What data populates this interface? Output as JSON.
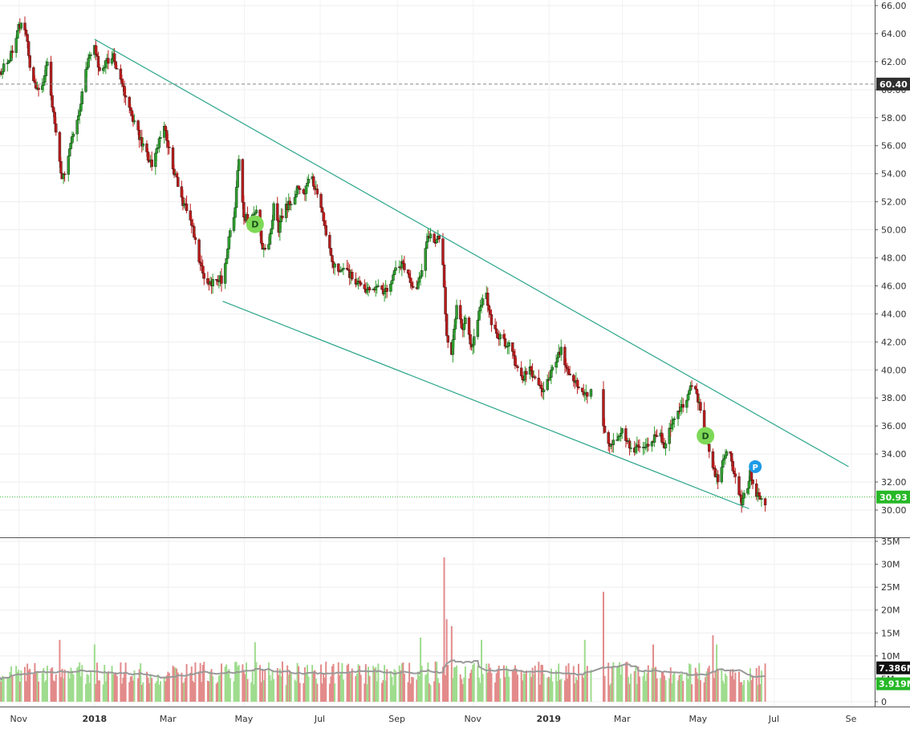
{
  "chart_data": [
    {
      "type": "candlestick",
      "title": "",
      "ylim": [
        29,
        66
      ],
      "y_ticks": [
        "30.00",
        "32.00",
        "34.00",
        "36.00",
        "38.00",
        "40.00",
        "42.00",
        "44.00",
        "46.00",
        "48.00",
        "50.00",
        "52.00",
        "54.00",
        "56.00",
        "58.00",
        "60.00",
        "62.00",
        "64.00",
        "66.00"
      ],
      "x_ticks": [
        "Nov",
        "2018",
        "Mar",
        "May",
        "Jul",
        "Sep",
        "Nov",
        "2019",
        "Mar",
        "May",
        "Jul",
        "Se"
      ],
      "x_range": [
        "2017-10-17",
        "2019-09-20"
      ],
      "grid": true,
      "price_path": [
        [
          "2017-10-17",
          61.2
        ],
        [
          "2017-10-25",
          62.2
        ],
        [
          "2017-11-01",
          64.4
        ],
        [
          "2017-11-04",
          64.8
        ],
        [
          "2017-11-07",
          63.8
        ],
        [
          "2017-11-12",
          60.6
        ],
        [
          "2017-11-18",
          59.6
        ],
        [
          "2017-11-24",
          61.8
        ],
        [
          "2017-11-28",
          58.8
        ],
        [
          "2017-12-02",
          56.2
        ],
        [
          "2017-12-06",
          53.6
        ],
        [
          "2017-12-10",
          54.6
        ],
        [
          "2017-12-14",
          56.4
        ],
        [
          "2017-12-20",
          58.6
        ],
        [
          "2017-12-25",
          61.6
        ],
        [
          "2018-01-01",
          63.2
        ],
        [
          "2018-01-06",
          61.0
        ],
        [
          "2018-01-11",
          62.0
        ],
        [
          "2018-01-16",
          62.4
        ],
        [
          "2018-01-21",
          60.8
        ],
        [
          "2018-01-26",
          59.6
        ],
        [
          "2018-02-01",
          57.8
        ],
        [
          "2018-02-06",
          56.6
        ],
        [
          "2018-02-11",
          55.6
        ],
        [
          "2018-02-16",
          54.6
        ],
        [
          "2018-02-21",
          56.0
        ],
        [
          "2018-02-25",
          57.6
        ],
        [
          "2018-03-01",
          56.0
        ],
        [
          "2018-03-06",
          54.2
        ],
        [
          "2018-03-11",
          52.4
        ],
        [
          "2018-03-16",
          51.4
        ],
        [
          "2018-03-20",
          50.6
        ],
        [
          "2018-03-25",
          48.0
        ],
        [
          "2018-03-30",
          46.6
        ],
        [
          "2018-04-04",
          46.2
        ],
        [
          "2018-04-10",
          46.6
        ],
        [
          "2018-04-14",
          46.4
        ],
        [
          "2018-04-19",
          49.2
        ],
        [
          "2018-04-24",
          51.6
        ],
        [
          "2018-04-27",
          55.2
        ],
        [
          "2018-05-01",
          51.0
        ],
        [
          "2018-05-06",
          50.6
        ],
        [
          "2018-05-11",
          51.4
        ],
        [
          "2018-05-16",
          48.8
        ],
        [
          "2018-05-20",
          48.4
        ],
        [
          "2018-05-25",
          51.6
        ],
        [
          "2018-05-29",
          50.0
        ],
        [
          "2018-06-02",
          51.4
        ],
        [
          "2018-06-08",
          52.0
        ],
        [
          "2018-06-14",
          53.2
        ],
        [
          "2018-06-18",
          52.6
        ],
        [
          "2018-06-24",
          53.8
        ],
        [
          "2018-06-28",
          52.8
        ],
        [
          "2018-07-02",
          51.4
        ],
        [
          "2018-07-06",
          49.6
        ],
        [
          "2018-07-11",
          47.6
        ],
        [
          "2018-07-18",
          47.2
        ],
        [
          "2018-07-25",
          46.8
        ],
        [
          "2018-08-01",
          46.2
        ],
        [
          "2018-08-08",
          45.6
        ],
        [
          "2018-08-15",
          46.0
        ],
        [
          "2018-08-22",
          45.4
        ],
        [
          "2018-08-29",
          46.8
        ],
        [
          "2018-09-05",
          47.6
        ],
        [
          "2018-09-10",
          46.8
        ],
        [
          "2018-09-15",
          45.6
        ],
        [
          "2018-09-20",
          46.6
        ],
        [
          "2018-09-24",
          48.8
        ],
        [
          "2018-09-27",
          49.6
        ],
        [
          "2018-10-01",
          49.0
        ],
        [
          "2018-10-05",
          49.4
        ],
        [
          "2018-10-08",
          47.6
        ],
        [
          "2018-10-11",
          42.4
        ],
        [
          "2018-10-15",
          41.2
        ],
        [
          "2018-10-19",
          44.4
        ],
        [
          "2018-10-23",
          43.0
        ],
        [
          "2018-10-27",
          43.6
        ],
        [
          "2018-10-31",
          41.6
        ],
        [
          "2018-11-04",
          43.2
        ],
        [
          "2018-11-08",
          44.8
        ],
        [
          "2018-11-12",
          45.2
        ],
        [
          "2018-11-16",
          43.2
        ],
        [
          "2018-11-21",
          42.4
        ],
        [
          "2018-11-26",
          42.0
        ],
        [
          "2018-12-01",
          41.6
        ],
        [
          "2018-12-06",
          40.2
        ],
        [
          "2018-12-11",
          39.4
        ],
        [
          "2018-12-16",
          40.2
        ],
        [
          "2018-12-21",
          39.2
        ],
        [
          "2018-12-26",
          38.6
        ],
        [
          "2019-01-01",
          39.2
        ],
        [
          "2019-01-06",
          40.6
        ],
        [
          "2019-01-11",
          41.4
        ],
        [
          "2019-01-16",
          40.0
        ],
        [
          "2019-01-21",
          39.2
        ],
        [
          "2019-01-26",
          38.8
        ],
        [
          "2019-01-30",
          38.2
        ],
        [
          "2019-02-04",
          38.6
        ],
        [
          "2019-02-12",
          null
        ],
        [
          "2019-02-14",
          35.8
        ],
        [
          "2019-02-19",
          34.4
        ],
        [
          "2019-02-24",
          35.0
        ],
        [
          "2019-03-01",
          35.8
        ],
        [
          "2019-03-06",
          34.8
        ],
        [
          "2019-03-11",
          34.2
        ],
        [
          "2019-03-16",
          34.6
        ],
        [
          "2019-03-21",
          34.8
        ],
        [
          "2019-03-26",
          35.0
        ],
        [
          "2019-03-31",
          35.6
        ],
        [
          "2019-04-04",
          34.2
        ],
        [
          "2019-04-08",
          35.6
        ],
        [
          "2019-04-13",
          36.8
        ],
        [
          "2019-04-18",
          37.4
        ],
        [
          "2019-04-21",
          37.2
        ],
        [
          "2019-04-25",
          38.8
        ],
        [
          "2019-04-28",
          39.0
        ],
        [
          "2019-05-02",
          37.6
        ],
        [
          "2019-05-05",
          36.2
        ],
        [
          "2019-05-09",
          34.6
        ],
        [
          "2019-05-13",
          33.0
        ],
        [
          "2019-05-17",
          32.0
        ],
        [
          "2019-05-21",
          33.4
        ],
        [
          "2019-05-26",
          34.8
        ],
        [
          "2019-05-30",
          32.4
        ],
        [
          "2019-06-02",
          31.6
        ],
        [
          "2019-06-05",
          30.6
        ],
        [
          "2019-06-09",
          31.2
        ],
        [
          "2019-06-12",
          32.6
        ],
        [
          "2019-06-16",
          31.4
        ],
        [
          "2019-06-19",
          30.8
        ],
        [
          "2019-06-24",
          30.6
        ]
      ],
      "trendlines": [
        {
          "from": [
            "2018-01-01",
            63.6
          ],
          "to": [
            "2019-08-30",
            33.1
          ]
        },
        {
          "from": [
            "2018-04-14",
            44.9
          ],
          "to": [
            "2019-06-11",
            30.1
          ]
        }
      ],
      "price_levels": [
        {
          "value": 60.4,
          "label": "60.40",
          "style": "dashed",
          "color": "#888888",
          "label_bg": "#2f2f2f"
        },
        {
          "value": 30.93,
          "label": "30.93",
          "style": "dotted",
          "color": "#2db52d",
          "label_bg": "#27b827"
        }
      ],
      "markers": [
        {
          "date": "2018-05-10",
          "value": 50.4,
          "label": "D",
          "color": "#7ed957"
        },
        {
          "date": "2019-05-07",
          "value": 35.3,
          "label": "D",
          "color": "#7ed957"
        },
        {
          "date": "2019-06-16",
          "value": 33.1,
          "label": "P",
          "color": "#1e9be6"
        }
      ],
      "up_color": "#2f9c2f",
      "down_color": "#b81c1c"
    },
    {
      "type": "bar",
      "title": "Volume",
      "ylim": [
        0,
        35
      ],
      "y_ticks": [
        "0",
        "5M",
        "10M",
        "15M",
        "20M",
        "25M",
        "30M",
        "35M"
      ],
      "volume_spikes": [
        {
          "date": "2017-11-12",
          "value": 13.0
        },
        {
          "date": "2017-12-04",
          "value": 13.5
        },
        {
          "date": "2018-01-01",
          "value": 12.5
        },
        {
          "date": "2018-04-22",
          "value": 15.5
        },
        {
          "date": "2018-05-10",
          "value": 13.0
        },
        {
          "date": "2018-09-20",
          "value": 14.0
        },
        {
          "date": "2018-10-09",
          "value": 31.5
        },
        {
          "date": "2018-10-11",
          "value": 18.0
        },
        {
          "date": "2018-10-15",
          "value": 16.5
        },
        {
          "date": "2018-11-08",
          "value": 13.5
        },
        {
          "date": "2019-01-30",
          "value": 13.5
        },
        {
          "date": "2019-02-14",
          "value": 24.0
        },
        {
          "date": "2019-03-26",
          "value": 12.5
        },
        {
          "date": "2019-05-13",
          "value": 14.5
        },
        {
          "date": "2019-05-16",
          "value": 12.5
        }
      ],
      "base_volume_m": 6.5,
      "end_date": "2019-06-24",
      "labels": [
        {
          "value": 7.386,
          "label": "7.386M",
          "color": "#111111"
        },
        {
          "value": 3.919,
          "label": "3.919M",
          "color": "#27b827"
        }
      ],
      "ma_color": "#999999",
      "up_color": "#9fdc8e",
      "down_color": "#e38b8b"
    }
  ]
}
